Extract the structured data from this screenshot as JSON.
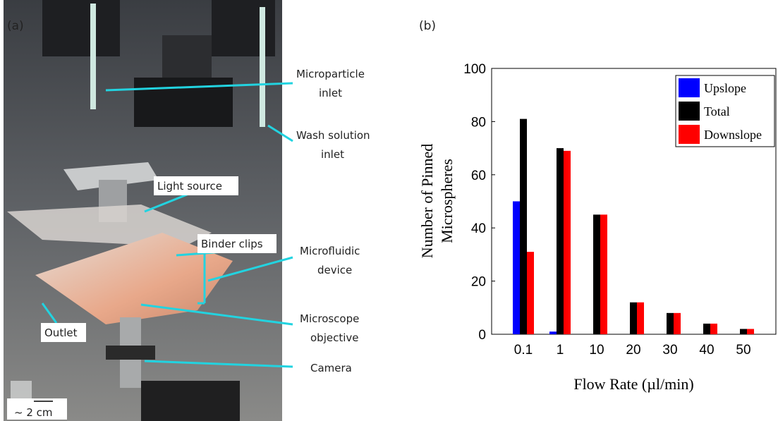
{
  "photo": {
    "panel_label": "(a)",
    "labels": {
      "microparticle_inlet": [
        "Microparticle",
        "inlet"
      ],
      "wash_solution_inlet": [
        "Wash solution",
        "inlet"
      ],
      "light_source": "Light source",
      "binder_clips": "Binder clips",
      "microfluidic_device": [
        "Microfluidic",
        "device"
      ],
      "microscope_objective": [
        "Microscope",
        "objective"
      ],
      "outlet": "Outlet",
      "camera": "Camera",
      "scale": "~ 2 cm"
    }
  },
  "chart_data": {
    "type": "bar",
    "panel_label": "(b)",
    "xlabel": "Flow Rate (µl/min)",
    "ylabel": [
      "Number of Pinned",
      "Microspheres"
    ],
    "categories": [
      "0.1",
      "1",
      "10",
      "20",
      "30",
      "40",
      "50"
    ],
    "series": [
      {
        "name": "Upslope",
        "color": "#0000ff",
        "values": [
          50,
          1,
          0,
          0,
          0,
          0,
          0
        ]
      },
      {
        "name": "Total",
        "color": "#000000",
        "values": [
          81,
          70,
          45,
          12,
          8,
          4,
          2
        ]
      },
      {
        "name": "Downslope",
        "color": "#ff0000",
        "values": [
          31,
          69,
          45,
          12,
          8,
          4,
          2
        ]
      }
    ],
    "ylim": [
      0,
      100
    ],
    "yticks": [
      0,
      20,
      40,
      60,
      80,
      100
    ],
    "legend": "upper right"
  }
}
